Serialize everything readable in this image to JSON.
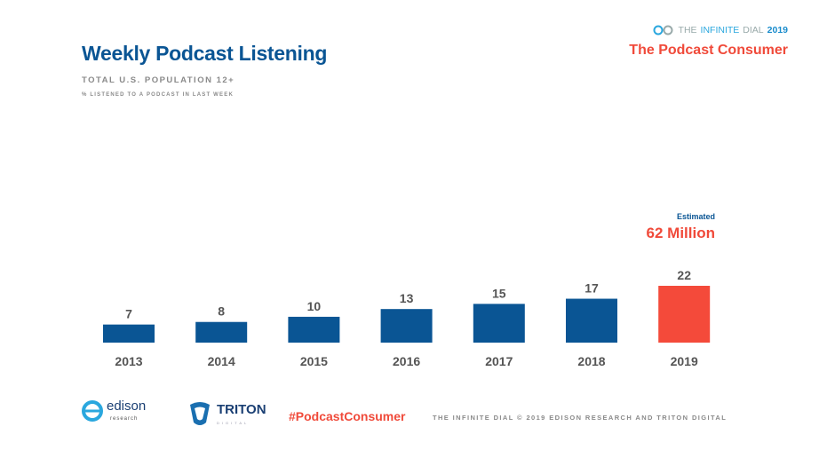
{
  "header": {
    "title": "Weekly Podcast Listening",
    "subtitle": "TOTAL U.S. POPULATION 12+",
    "caption": "% LISTENED TO A PODCAST IN LAST WEEK",
    "brand_prefix": "THE",
    "brand_name": "INFINITE",
    "brand_suffix": "DIAL",
    "brand_year": "2019",
    "section": "The Podcast Consumer"
  },
  "annotation": {
    "label": "Estimated",
    "value": "62 Million"
  },
  "chart_data": {
    "type": "bar",
    "categories": [
      "2013",
      "2014",
      "2015",
      "2016",
      "2017",
      "2018",
      "2019"
    ],
    "values": [
      7,
      8,
      10,
      13,
      15,
      17,
      22
    ],
    "ylim": [
      0,
      22
    ],
    "grid": false,
    "colors": [
      "#0a5594",
      "#0a5594",
      "#0a5594",
      "#0a5594",
      "#0a5594",
      "#0a5594",
      "#f44a3a"
    ]
  },
  "footer": {
    "edison_logo": "edison research",
    "triton_logo": "TRITON DIGITAL",
    "hashtag": "#PodcastConsumer",
    "copyright": "THE INFINITE DIAL   © 2019 EDISON RESEARCH AND TRITON DIGITAL"
  }
}
